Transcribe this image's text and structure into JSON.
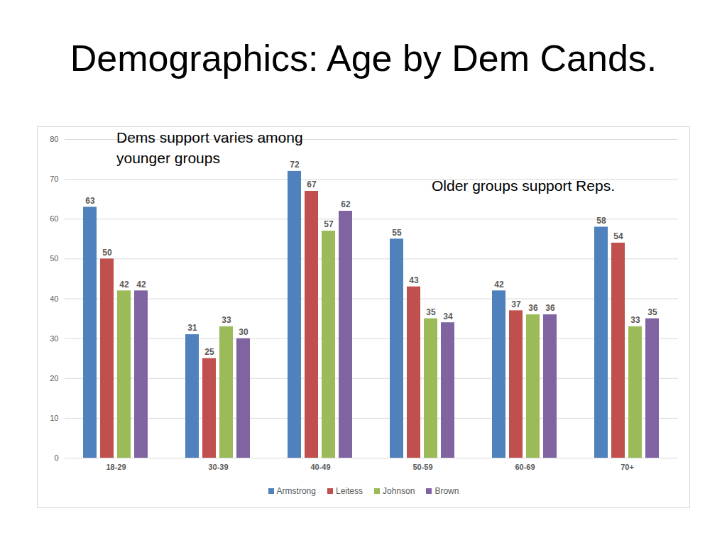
{
  "chart_data": {
    "type": "bar",
    "title": "Demographics: Age by Dem Cands.",
    "annotations": [
      "Dems support varies among younger groups",
      "Older groups support Reps."
    ],
    "categories": [
      "18-29",
      "30-39",
      "40-49",
      "50-59",
      "60-69",
      "70+"
    ],
    "series": [
      {
        "name": "Armstrong",
        "color": "#4f81bd",
        "values": [
          63,
          31,
          72,
          55,
          42,
          58
        ]
      },
      {
        "name": "Leitess",
        "color": "#c0504d",
        "values": [
          50,
          25,
          67,
          43,
          37,
          54
        ]
      },
      {
        "name": "Johnson",
        "color": "#9bbb59",
        "values": [
          42,
          33,
          57,
          35,
          36,
          33
        ]
      },
      {
        "name": "Brown",
        "color": "#8064a2",
        "values": [
          42,
          30,
          62,
          34,
          36,
          35
        ]
      }
    ],
    "ylim": [
      0,
      80
    ],
    "yticks": [
      0,
      10,
      20,
      30,
      40,
      50,
      60,
      70,
      80
    ],
    "grid": true,
    "data_labels": true,
    "legend": "bottom"
  }
}
